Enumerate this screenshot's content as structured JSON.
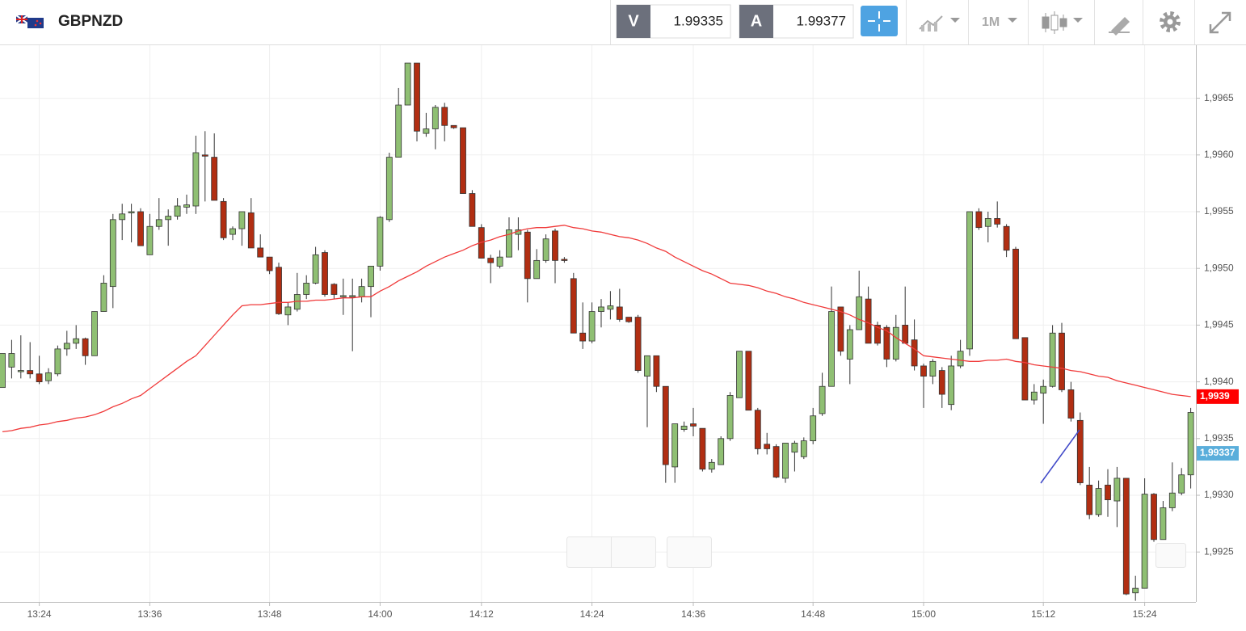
{
  "header": {
    "symbol": "GBPNZD",
    "bid_label": "V",
    "bid": "1.99335",
    "ask_label": "A",
    "ask": "1.99377",
    "timeframe": "1M"
  },
  "chart_data": {
    "type": "candlestick",
    "categories": [
      null,
      null,
      null,
      null,
      "13:24",
      null,
      null,
      null,
      null,
      null,
      null,
      null,
      null,
      null,
      null,
      null,
      "13:36",
      null,
      null,
      null,
      null,
      null,
      null,
      null,
      null,
      null,
      null,
      null,
      null,
      "13:48",
      null,
      null,
      null,
      null,
      null,
      null,
      null,
      null,
      null,
      null,
      null,
      "14:00",
      null,
      null,
      null,
      null,
      null,
      null,
      null,
      null,
      null,
      null,
      "14:12",
      null,
      null,
      null,
      null,
      null,
      null,
      null,
      null,
      null,
      null,
      null,
      "14:24",
      null,
      null,
      null,
      null,
      null,
      null,
      null,
      null,
      null,
      null,
      "14:36",
      null,
      null,
      null,
      null,
      null,
      null,
      null,
      null,
      null,
      null,
      null,
      null,
      "14:48",
      null,
      null,
      null,
      null,
      null,
      null,
      null,
      null,
      null,
      null,
      null,
      "15:00",
      null,
      null,
      null,
      null,
      null,
      null,
      null,
      null,
      null,
      null,
      null,
      null,
      "15:12",
      null,
      null,
      null,
      null,
      null,
      null,
      null,
      null,
      null,
      null,
      "15:24",
      null,
      null,
      null,
      null,
      null
    ],
    "open": [
      1.99395,
      1.99413,
      1.9941,
      1.9941,
      1.99407,
      1.99401,
      1.99407,
      1.99429,
      1.99434,
      1.99438,
      1.99423,
      1.99462,
      1.99484,
      1.99543,
      1.9955,
      1.9955,
      1.99512,
      1.99537,
      1.99543,
      1.99546,
      1.99554,
      1.99555,
      1.996,
      1.99598,
      1.99559,
      1.9953,
      1.99535,
      1.99549,
      1.99518,
      1.9951,
      1.99501,
      1.99459,
      1.99464,
      1.99477,
      1.99487,
      1.99514,
      1.99486,
      1.99476,
      1.99476,
      1.99475,
      1.99484,
      1.99502,
      1.99543,
      1.99598,
      1.99644,
      1.99681,
      1.99619,
      1.99623,
      1.99642,
      1.99626,
      1.99624,
      1.99566,
      1.99536,
      1.99509,
      1.99502,
      1.9951,
      1.9953,
      1.99532,
      1.99491,
      1.99507,
      1.99533,
      1.99508,
      1.99491,
      1.99443,
      1.99436,
      1.99462,
      1.99464,
      1.99466,
      1.99457,
      1.99457,
      1.99405,
      1.99423,
      1.99396,
      1.99325,
      1.99358,
      1.99363,
      1.99359,
      1.99323,
      1.99327,
      1.9935,
      1.99386,
      1.99427,
      1.99375,
      1.99345,
      1.99343,
      1.99315,
      1.99338,
      1.99334,
      1.99348,
      1.99372,
      1.99396,
      1.99466,
      1.9942,
      1.99446,
      1.99473,
      1.9945,
      1.99448,
      1.9942,
      1.9945,
      1.99437,
      1.99414,
      1.99405,
      1.9941,
      1.9938,
      1.99414,
      1.99429,
      1.9955,
      1.99537,
      1.99544,
      1.99537,
      1.99517,
      1.99439,
      1.99384,
      1.9939,
      1.99396,
      1.99443,
      1.99393,
      1.99366,
      1.99309,
      1.99283,
      1.99309,
      1.99295,
      1.99315,
      1.99214,
      1.99218,
      1.99301,
      1.99261,
      1.99289,
      1.99302,
      1.99318
    ],
    "high": [
      1.99425,
      1.99437,
      1.99441,
      1.99435,
      1.99423,
      1.99412,
      1.99432,
      1.99445,
      1.9945,
      1.99439,
      1.99462,
      1.99494,
      1.99548,
      1.99557,
      1.99557,
      1.99553,
      1.99548,
      1.99562,
      1.99552,
      1.99562,
      1.99565,
      1.99617,
      1.99621,
      1.99619,
      1.99562,
      1.99537,
      1.9955,
      1.99562,
      1.9953,
      1.9951,
      1.99505,
      1.9947,
      1.99496,
      1.99494,
      1.99519,
      1.99516,
      1.99487,
      1.99491,
      1.99491,
      1.99491,
      1.99502,
      1.99546,
      1.99602,
      1.99659,
      1.99681,
      1.99681,
      1.99637,
      1.99644,
      1.99646,
      1.99626,
      1.99624,
      1.99569,
      1.99539,
      1.99512,
      1.99516,
      1.99545,
      1.99545,
      1.99534,
      1.99517,
      1.9953,
      1.99535,
      1.9951,
      1.99496,
      1.9947,
      1.9947,
      1.99473,
      1.9948,
      1.99482,
      1.99457,
      1.99459,
      1.99423,
      1.99423,
      1.99396,
      1.99363,
      1.99365,
      1.99377,
      1.99359,
      1.99332,
      1.99352,
      1.99391,
      1.99427,
      1.99427,
      1.99377,
      1.99355,
      1.99345,
      1.99346,
      1.99348,
      1.99351,
      1.99377,
      1.99408,
      1.99484,
      1.99466,
      1.9945,
      1.99498,
      1.99484,
      1.99453,
      1.9945,
      1.99459,
      1.99484,
      1.99455,
      1.99416,
      1.9942,
      1.99413,
      1.99423,
      1.99437,
      1.9955,
      1.99553,
      1.9955,
      1.99559,
      1.99539,
      1.99519,
      1.99439,
      1.99398,
      1.99402,
      1.9945,
      1.99452,
      1.994,
      1.99373,
      1.99325,
      1.99313,
      1.99323,
      1.99325,
      1.99315,
      1.99229,
      1.99315,
      1.99302,
      1.99295,
      1.99329,
      1.99324,
      1.99377
    ],
    "low": [
      1.99395,
      1.99403,
      1.99403,
      1.99403,
      1.99398,
      1.99398,
      1.99405,
      1.99423,
      1.99429,
      1.99415,
      1.99423,
      1.99462,
      1.99465,
      1.99525,
      1.99523,
      1.9952,
      1.99512,
      1.99534,
      1.9952,
      1.99543,
      1.99548,
      1.99548,
      1.99559,
      1.9956,
      1.99525,
      1.99525,
      1.9952,
      1.99518,
      1.9951,
      1.99495,
      1.99459,
      1.9945,
      1.99462,
      1.99473,
      1.99486,
      1.99475,
      1.99473,
      1.99459,
      1.99427,
      1.9947,
      1.99457,
      1.99498,
      1.99541,
      1.99598,
      1.99644,
      1.99612,
      1.99616,
      1.99605,
      1.99612,
      1.99623,
      1.99566,
      1.99537,
      1.99509,
      1.99487,
      1.995,
      1.9951,
      1.99516,
      1.9947,
      1.99491,
      1.99505,
      1.99487,
      1.99505,
      1.99443,
      1.99429,
      1.99434,
      1.99448,
      1.99455,
      1.99453,
      1.99452,
      1.99408,
      1.9936,
      1.99391,
      1.99311,
      1.99311,
      1.99356,
      1.99352,
      1.99321,
      1.9932,
      1.99327,
      1.99348,
      1.99386,
      1.99375,
      1.99336,
      1.99336,
      1.99315,
      1.99311,
      1.99321,
      1.99332,
      1.99345,
      1.9937,
      1.99396,
      1.99423,
      1.99398,
      1.99446,
      1.99434,
      1.99432,
      1.99413,
      1.99418,
      1.99434,
      1.9941,
      1.99377,
      1.99398,
      1.99377,
      1.99375,
      1.99412,
      1.99423,
      1.99534,
      1.99523,
      1.99536,
      1.9951,
      1.99438,
      1.99384,
      1.9938,
      1.99363,
      1.99395,
      1.99391,
      1.99365,
      1.99309,
      1.99279,
      1.99281,
      1.99281,
      1.99272,
      1.99212,
      1.99207,
      1.99218,
      1.99259,
      1.99261,
      1.99286,
      1.993,
      1.99306
    ],
    "close": [
      1.99425,
      1.99425,
      1.9941,
      1.99407,
      1.994,
      1.99408,
      1.99429,
      1.99434,
      1.99438,
      1.99423,
      1.99462,
      1.99487,
      1.99543,
      1.99548,
      1.9955,
      1.9952,
      1.99537,
      1.99543,
      1.99546,
      1.99555,
      1.99556,
      1.99602,
      1.99599,
      1.9956,
      1.99527,
      1.99535,
      1.9955,
      1.99518,
      1.9951,
      1.99498,
      1.9946,
      1.99466,
      1.99477,
      1.99487,
      1.99512,
      1.99477,
      1.99477,
      1.99476,
      1.99476,
      1.99484,
      1.99502,
      1.99545,
      1.99598,
      1.99644,
      1.99681,
      1.99621,
      1.99623,
      1.99642,
      1.99626,
      1.99624,
      1.99566,
      1.99537,
      1.99509,
      1.99505,
      1.9951,
      1.99534,
      1.99534,
      1.99491,
      1.99507,
      1.99526,
      1.99507,
      1.99507,
      1.99443,
      1.99436,
      1.99462,
      1.99466,
      1.99467,
      1.99455,
      1.99453,
      1.9941,
      1.99423,
      1.99396,
      1.99327,
      1.99363,
      1.99361,
      1.99361,
      1.99323,
      1.99329,
      1.9935,
      1.99388,
      1.99427,
      1.99375,
      1.99341,
      1.99341,
      1.99316,
      1.99346,
      1.99346,
      1.99348,
      1.9937,
      1.99396,
      1.99462,
      1.99427,
      1.99446,
      1.99475,
      1.99434,
      1.99434,
      1.9942,
      1.99448,
      1.99434,
      1.99414,
      1.99405,
      1.99418,
      1.99389,
      1.99414,
      1.99427,
      1.9955,
      1.99536,
      1.99544,
      1.99539,
      1.99516,
      1.99438,
      1.99384,
      1.99391,
      1.99396,
      1.99443,
      1.99393,
      1.99368,
      1.99311,
      1.99283,
      1.99306,
      1.99296,
      1.99315,
      1.99213,
      1.99218,
      1.99301,
      1.99261,
      1.99289,
      1.99302,
      1.99318,
      1.99373
    ],
    "up_color": "#8fbf73",
    "down_color": "#b12e12",
    "ma": {
      "color": "#f03a3a",
      "values": [
        1.99356,
        1.99357,
        1.99359,
        1.9936,
        1.99362,
        1.99363,
        1.99365,
        1.99366,
        1.99368,
        1.99369,
        1.99371,
        1.99374,
        1.99378,
        1.99381,
        1.99385,
        1.99388,
        1.99394,
        1.994,
        1.99406,
        1.99412,
        1.99418,
        1.99423,
        1.99432,
        1.99441,
        1.9945,
        1.99459,
        1.99467,
        1.99468,
        1.99468,
        1.99469,
        1.9947,
        1.9947,
        1.99471,
        1.99471,
        1.99472,
        1.99472,
        1.99473,
        1.99474,
        1.99474,
        1.99475,
        1.99475,
        1.9948,
        1.99484,
        1.99489,
        1.99493,
        1.99497,
        1.99502,
        1.99506,
        1.9951,
        1.99513,
        1.99516,
        1.9952,
        1.99523,
        1.99525,
        1.99528,
        1.9953,
        1.99533,
        1.99535,
        1.99536,
        1.99536,
        1.99537,
        1.99538,
        1.99536,
        1.99535,
        1.99533,
        1.99532,
        1.9953,
        1.99528,
        1.99527,
        1.99525,
        1.99522,
        1.99518,
        1.99515,
        1.9951,
        1.99506,
        1.99502,
        1.99498,
        1.99495,
        1.99491,
        1.99487,
        1.99486,
        1.99485,
        1.99483,
        1.9948,
        1.99478,
        1.99475,
        1.99473,
        1.9947,
        1.99468,
        1.99466,
        1.99464,
        1.99462,
        1.99459,
        1.99455,
        1.99452,
        1.99448,
        1.99445,
        1.99439,
        1.99434,
        1.99429,
        1.99423,
        1.99422,
        1.99421,
        1.9942,
        1.99419,
        1.99418,
        1.99418,
        1.99419,
        1.99419,
        1.9942,
        1.99418,
        1.99417,
        1.99415,
        1.99414,
        1.99413,
        1.99412,
        1.9941,
        1.99409,
        1.99407,
        1.99405,
        1.99404,
        1.99401,
        1.99399,
        1.99397,
        1.99395,
        1.99393,
        1.99391,
        1.99389,
        1.99388,
        1.99387
      ]
    },
    "markers": [
      {
        "value": 1.99387,
        "label": "1,9939",
        "color": "#ff0000"
      },
      {
        "value": 1.99337,
        "label": "1,99337",
        "color": "#5aaedb"
      }
    ],
    "ylim": [
      1.99206,
      1.99696
    ],
    "yticks": [
      {
        "value": 1.9925,
        "label": "1,9925"
      },
      {
        "value": 1.993,
        "label": "1,9930"
      },
      {
        "value": 1.9935,
        "label": "1,9935"
      },
      {
        "value": 1.994,
        "label": "1,9940"
      },
      {
        "value": 1.9945,
        "label": "1,9945"
      },
      {
        "value": 1.995,
        "label": "1,9950"
      },
      {
        "value": 1.9955,
        "label": "1,9955"
      },
      {
        "value": 1.996,
        "label": "1,9960"
      },
      {
        "value": 1.9965,
        "label": "1,9965"
      }
    ],
    "grid": true
  }
}
